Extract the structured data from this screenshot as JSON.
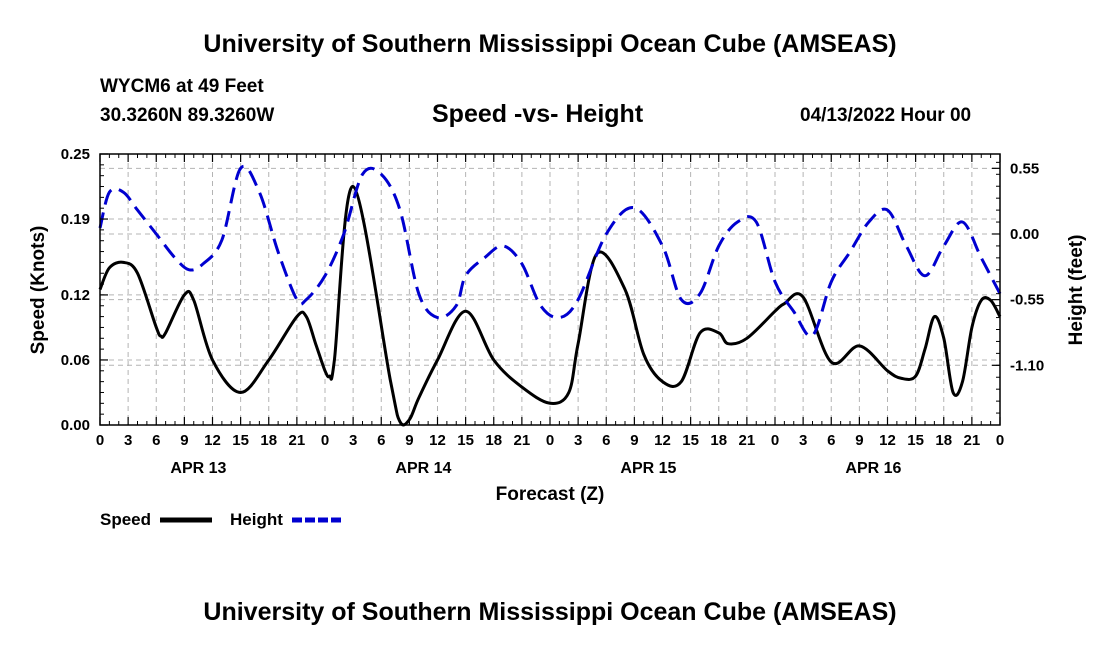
{
  "page": {
    "title_top": "University of Southern Mississippi Ocean Cube (AMSEAS)",
    "title_bottom": "University of Southern Mississippi Ocean Cube (AMSEAS)",
    "station": "WYCM6 at 49 Feet",
    "coords": "30.3260N  89.3260W",
    "datestamp": "04/13/2022 Hour 00"
  },
  "chart_data": {
    "type": "line",
    "title": "Speed -vs- Height",
    "xlabel": "Forecast (Z)",
    "ylabel": "Speed (Knots)",
    "y2label": "Height (feet)",
    "x_hours_range": [
      0,
      96
    ],
    "x_tick_labels": [
      "0",
      "3",
      "6",
      "9",
      "12",
      "15",
      "18",
      "21",
      "0",
      "3",
      "6",
      "9",
      "12",
      "15",
      "18",
      "21",
      "0",
      "3",
      "6",
      "9",
      "12",
      "15",
      "18",
      "21",
      "0",
      "3",
      "6",
      "9",
      "12",
      "15",
      "18",
      "21",
      "0"
    ],
    "date_labels": [
      {
        "text": "APR 13",
        "hour": 10.5
      },
      {
        "text": "APR 14",
        "hour": 34.5
      },
      {
        "text": "APR 15",
        "hour": 58.5
      },
      {
        "text": "APR 16",
        "hour": 82.5
      }
    ],
    "ylim": [
      0,
      0.25
    ],
    "y_ticks": [
      0.0,
      0.06,
      0.12,
      0.19,
      0.25
    ],
    "y_tick_labels": [
      "0.00",
      "0.06",
      "0.12",
      "0.19",
      "0.25"
    ],
    "y2lim": [
      -1.6,
      0.67
    ],
    "y2_ticks": [
      0.55,
      0.0,
      -0.55,
      -1.1
    ],
    "y2_tick_labels": [
      "0.55",
      "0.00",
      "-0.55",
      "-1.10"
    ],
    "grid": true,
    "series": [
      {
        "name": "Speed",
        "axis": "left",
        "color": "#000000",
        "x": [
          0,
          1,
          2.5,
          4,
          6,
          6.5,
          7,
          9,
          10,
          12,
          15,
          18,
          21,
          22,
          23,
          24,
          24.5,
          25,
          27,
          31,
          32,
          33,
          34,
          36,
          39,
          42,
          45,
          48,
          50,
          51,
          53,
          56,
          58,
          60,
          62,
          64,
          66,
          67,
          69,
          72,
          73,
          75,
          78,
          81,
          84,
          85.5,
          87,
          88,
          89,
          90,
          91,
          92,
          93,
          94,
          95,
          96
        ],
        "values": [
          0.125,
          0.145,
          0.15,
          0.14,
          0.09,
          0.082,
          0.085,
          0.12,
          0.115,
          0.06,
          0.03,
          0.06,
          0.1,
          0.1,
          0.075,
          0.05,
          0.045,
          0.06,
          0.22,
          0.04,
          0.003,
          0.005,
          0.025,
          0.06,
          0.105,
          0.06,
          0.035,
          0.02,
          0.03,
          0.075,
          0.158,
          0.125,
          0.065,
          0.04,
          0.04,
          0.085,
          0.085,
          0.075,
          0.08,
          0.105,
          0.112,
          0.118,
          0.058,
          0.073,
          0.05,
          0.043,
          0.045,
          0.07,
          0.1,
          0.08,
          0.03,
          0.04,
          0.09,
          0.115,
          0.115,
          0.1
        ]
      },
      {
        "name": "Height",
        "axis": "right",
        "color": "#0000d0",
        "x": [
          0,
          1,
          2.5,
          4,
          6,
          8,
          9.5,
          11,
          13,
          15,
          17,
          19,
          21,
          22,
          24,
          26,
          28,
          30,
          32,
          34,
          36,
          38,
          39,
          41,
          43,
          45,
          47,
          49,
          51,
          54,
          57,
          60,
          62,
          64,
          66,
          68,
          70,
          72,
          74,
          76,
          78,
          80,
          82,
          84,
          86,
          88,
          90,
          92,
          94,
          96
        ],
        "values": [
          0.05,
          0.35,
          0.35,
          0.2,
          0.0,
          -0.2,
          -0.3,
          -0.25,
          -0.05,
          0.55,
          0.35,
          -0.15,
          -0.55,
          -0.55,
          -0.35,
          0.0,
          0.5,
          0.5,
          0.2,
          -0.5,
          -0.7,
          -0.6,
          -0.35,
          -0.2,
          -0.1,
          -0.25,
          -0.6,
          -0.7,
          -0.55,
          0.0,
          0.22,
          -0.1,
          -0.55,
          -0.5,
          -0.1,
          0.1,
          0.1,
          -0.4,
          -0.65,
          -0.85,
          -0.4,
          -0.15,
          0.1,
          0.2,
          -0.1,
          -0.35,
          -0.1,
          0.1,
          -0.2,
          -0.5
        ]
      }
    ],
    "legend": [
      {
        "label": "Speed",
        "color": "#000000",
        "style": "solid"
      },
      {
        "label": "Height",
        "color": "#0000d0",
        "style": "dashed"
      }
    ],
    "legend_position": "bottom-left"
  }
}
